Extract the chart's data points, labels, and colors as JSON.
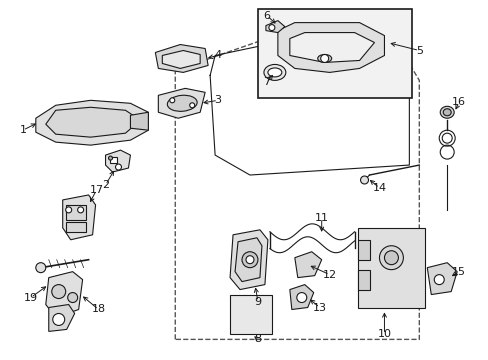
{
  "bg_color": "#ffffff",
  "line_color": "#1a1a1a",
  "fig_width": 4.89,
  "fig_height": 3.6,
  "dpi": 100,
  "font_size": 8,
  "lw": 0.8
}
